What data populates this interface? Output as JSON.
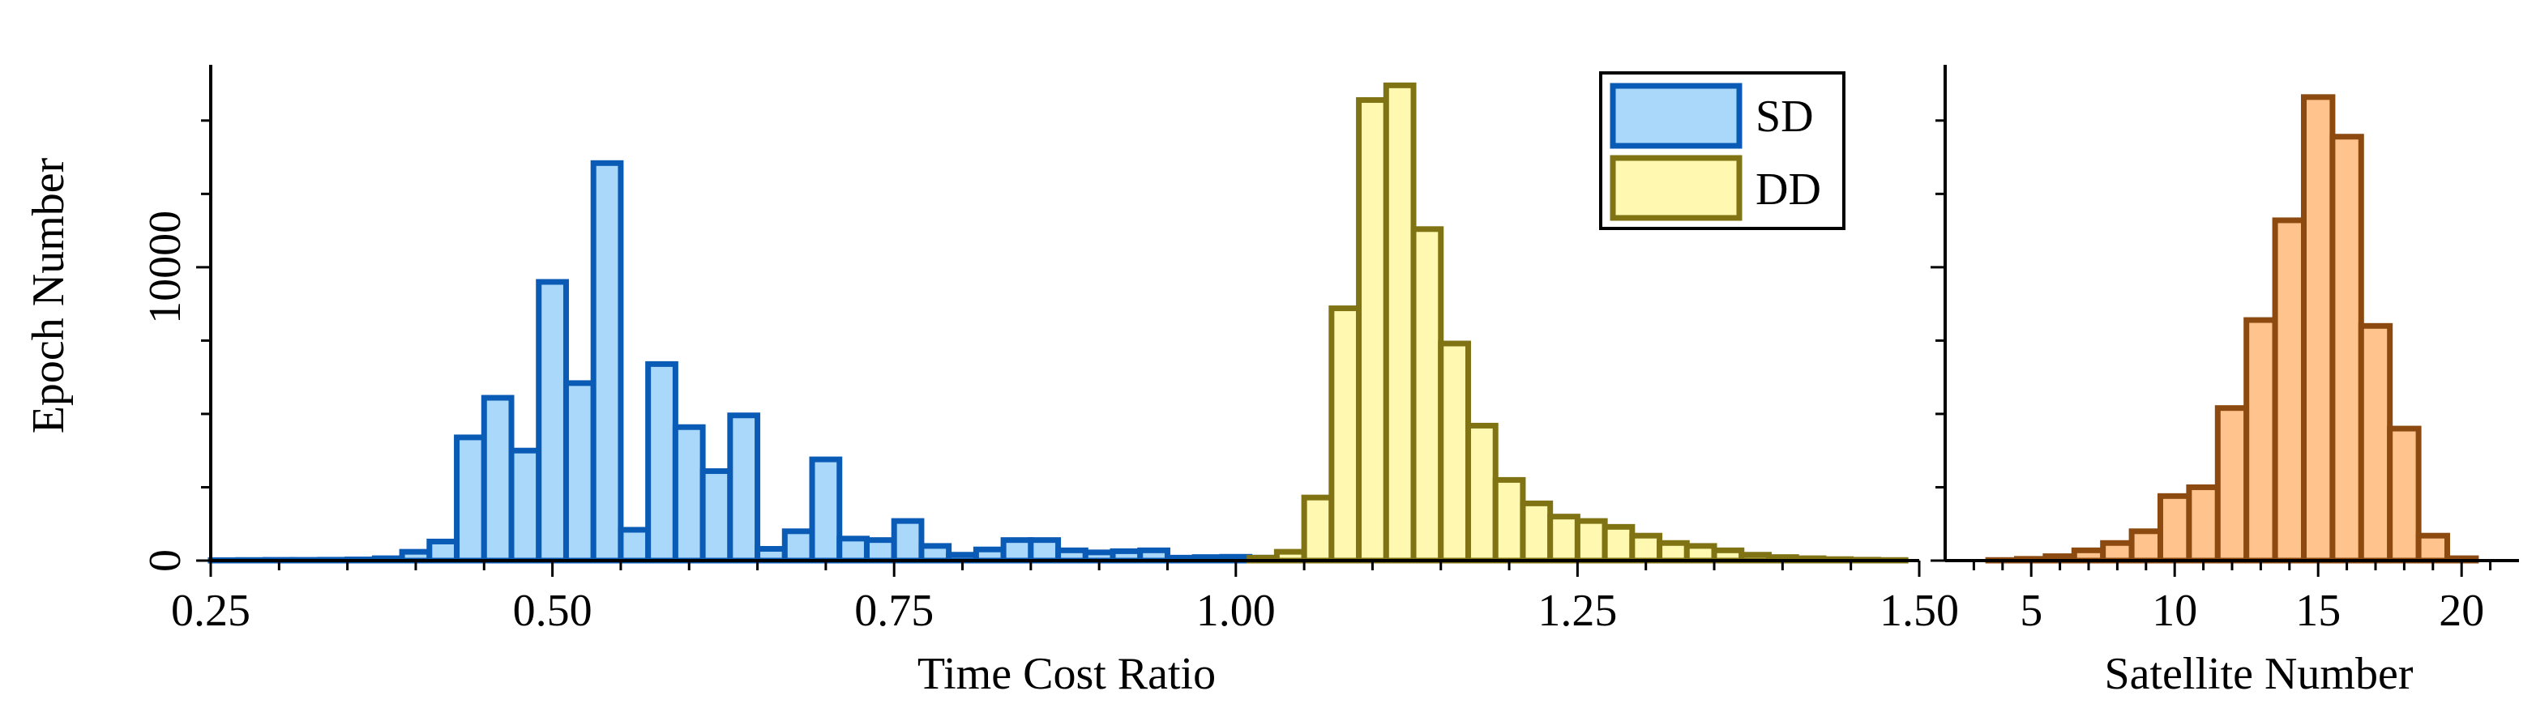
{
  "chart_data": [
    {
      "type": "bar",
      "subtype": "histogram",
      "xlabel": "Time Cost Ratio",
      "ylabel": "Epoch Number",
      "xlim": [
        0.25,
        1.5
      ],
      "ylim": [
        0,
        16900
      ],
      "bin_width": 0.02,
      "x_ticks": [
        0.25,
        0.5,
        0.75,
        1.0,
        1.25,
        1.5
      ],
      "x_tick_labels": [
        "0.25",
        "0.50",
        "0.75",
        "1.00",
        "1.25",
        "1.50"
      ],
      "y_ticks": [
        0,
        10000
      ],
      "y_tick_labels": [
        "0",
        "10000"
      ],
      "legend": "top-right",
      "series": [
        {
          "name": "SD",
          "fill": "#aad8fa",
          "stroke": "#0a5bb5",
          "bins": [
            [
              0.25,
              15
            ],
            [
              0.27,
              20
            ],
            [
              0.29,
              25
            ],
            [
              0.31,
              25
            ],
            [
              0.33,
              30
            ],
            [
              0.35,
              40
            ],
            [
              0.37,
              80
            ],
            [
              0.39,
              300
            ],
            [
              0.41,
              650
            ],
            [
              0.43,
              4200
            ],
            [
              0.45,
              5550
            ],
            [
              0.47,
              3750
            ],
            [
              0.49,
              9500
            ],
            [
              0.51,
              6050
            ],
            [
              0.53,
              13550
            ],
            [
              0.55,
              1050
            ],
            [
              0.57,
              6700
            ],
            [
              0.59,
              4550
            ],
            [
              0.61,
              3050
            ],
            [
              0.63,
              4950
            ],
            [
              0.65,
              400
            ],
            [
              0.67,
              1000
            ],
            [
              0.69,
              3450
            ],
            [
              0.71,
              750
            ],
            [
              0.73,
              700
            ],
            [
              0.75,
              1350
            ],
            [
              0.77,
              500
            ],
            [
              0.79,
              200
            ],
            [
              0.81,
              380
            ],
            [
              0.83,
              700
            ],
            [
              0.85,
              700
            ],
            [
              0.87,
              350
            ],
            [
              0.89,
              280
            ],
            [
              0.91,
              320
            ],
            [
              0.93,
              350
            ],
            [
              0.95,
              100
            ],
            [
              0.97,
              120
            ],
            [
              0.99,
              130
            ],
            [
              1.01,
              100
            ]
          ]
        },
        {
          "name": "DD",
          "fill": "#fff8b0",
          "stroke": "#807314",
          "bins": [
            [
              1.01,
              100
            ],
            [
              1.03,
              300
            ],
            [
              1.05,
              2150
            ],
            [
              1.07,
              8600
            ],
            [
              1.09,
              15700
            ],
            [
              1.11,
              16200
            ],
            [
              1.13,
              11300
            ],
            [
              1.15,
              7400
            ],
            [
              1.17,
              4600
            ],
            [
              1.19,
              2750
            ],
            [
              1.21,
              1950
            ],
            [
              1.23,
              1500
            ],
            [
              1.25,
              1350
            ],
            [
              1.27,
              1150
            ],
            [
              1.29,
              850
            ],
            [
              1.31,
              600
            ],
            [
              1.33,
              500
            ],
            [
              1.35,
              350
            ],
            [
              1.37,
              200
            ],
            [
              1.39,
              120
            ],
            [
              1.41,
              80
            ],
            [
              1.43,
              50
            ],
            [
              1.45,
              30
            ],
            [
              1.47,
              20
            ]
          ]
        }
      ]
    },
    {
      "type": "bar",
      "subtype": "histogram",
      "xlabel": "Satellite Number",
      "ylabel": "",
      "xlim": [
        2,
        22
      ],
      "ylim": [
        0,
        16900
      ],
      "bin_width": 1,
      "x_ticks": [
        5,
        10,
        15,
        20
      ],
      "x_tick_labels": [
        "5",
        "10",
        "15",
        "20"
      ],
      "series": [
        {
          "name": "",
          "fill": "#ffc48e",
          "stroke": "#8c4a10",
          "bins": [
            [
              4,
              20
            ],
            [
              5,
              60
            ],
            [
              6,
              150
            ],
            [
              7,
              350
            ],
            [
              8,
              600
            ],
            [
              9,
              1000
            ],
            [
              10,
              2200
            ],
            [
              11,
              2500
            ],
            [
              12,
              5200
            ],
            [
              13,
              8200
            ],
            [
              14,
              11600
            ],
            [
              15,
              15800
            ],
            [
              16,
              14450
            ],
            [
              17,
              8000
            ],
            [
              18,
              4500
            ],
            [
              19,
              850
            ],
            [
              20,
              80
            ]
          ]
        }
      ]
    }
  ]
}
